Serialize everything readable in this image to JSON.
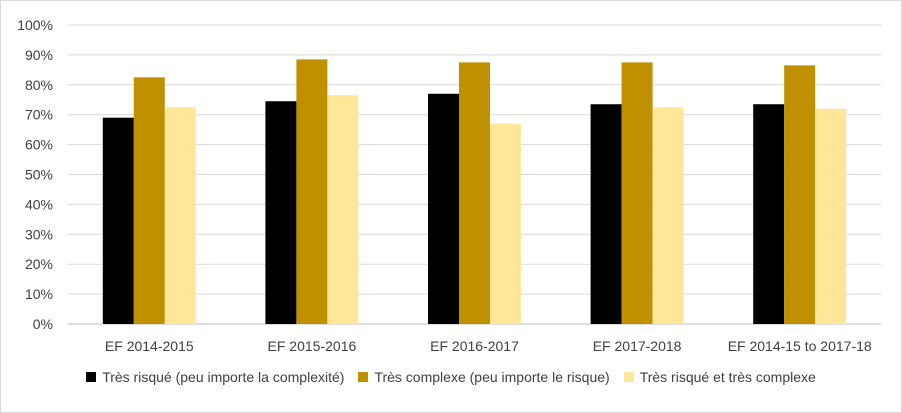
{
  "chart_data": {
    "type": "bar",
    "title": "",
    "xlabel": "",
    "ylabel": "",
    "ylim": [
      0,
      1.0
    ],
    "y_ticks": [
      "0%",
      "10%",
      "20%",
      "30%",
      "40%",
      "50%",
      "60%",
      "70%",
      "80%",
      "90%",
      "100%"
    ],
    "categories": [
      "EF 2014-2015",
      "EF 2015-2016",
      "EF 2016-2017",
      "EF 2017-2018",
      "EF 2014-15 to 2017-18"
    ],
    "series": [
      {
        "name": "Très risqué (peu importe la complexité)",
        "color": "#000000",
        "values": [
          0.69,
          0.745,
          0.77,
          0.735,
          0.735
        ]
      },
      {
        "name": "Très complexe (peu importe le risque)",
        "color": "#bf9000",
        "values": [
          0.825,
          0.885,
          0.875,
          0.875,
          0.865
        ]
      },
      {
        "name": "Très risqué et très complexe",
        "color": "#ffe699",
        "values": [
          0.725,
          0.765,
          0.67,
          0.725,
          0.72
        ]
      }
    ],
    "grid": true,
    "legend_position": "bottom"
  }
}
